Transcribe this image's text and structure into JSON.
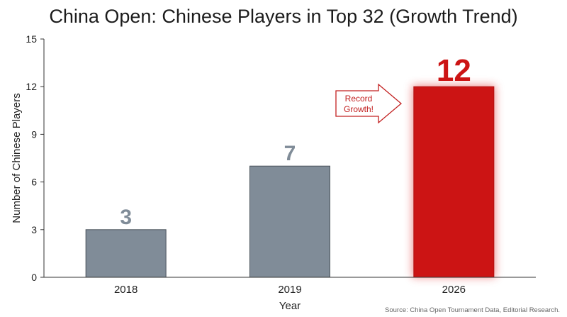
{
  "chart_data": {
    "type": "bar",
    "title": "China Open: Chinese Players in Top 32 (Growth Trend)",
    "xlabel": "Year",
    "ylabel": "Number of Chinese Players",
    "categories": [
      "2018",
      "2019",
      "2026"
    ],
    "values": [
      3,
      7,
      12
    ],
    "data_labels": [
      "3",
      "7",
      "12"
    ],
    "ylim": [
      0,
      15
    ],
    "yticks": [
      0,
      3,
      6,
      9,
      12,
      15
    ],
    "grid": false,
    "colors": {
      "default_bar": "#808c98",
      "highlight_bar": "#cc1414",
      "default_label": "#808c98",
      "highlight_label": "#cc1414"
    },
    "highlight_index": 2,
    "annotation": {
      "text_line1": "Record",
      "text_line2": "Growth!",
      "target": "2026",
      "shape": "arrow-right"
    },
    "source": "Source: China Open Tournament Data, Editorial Research."
  }
}
